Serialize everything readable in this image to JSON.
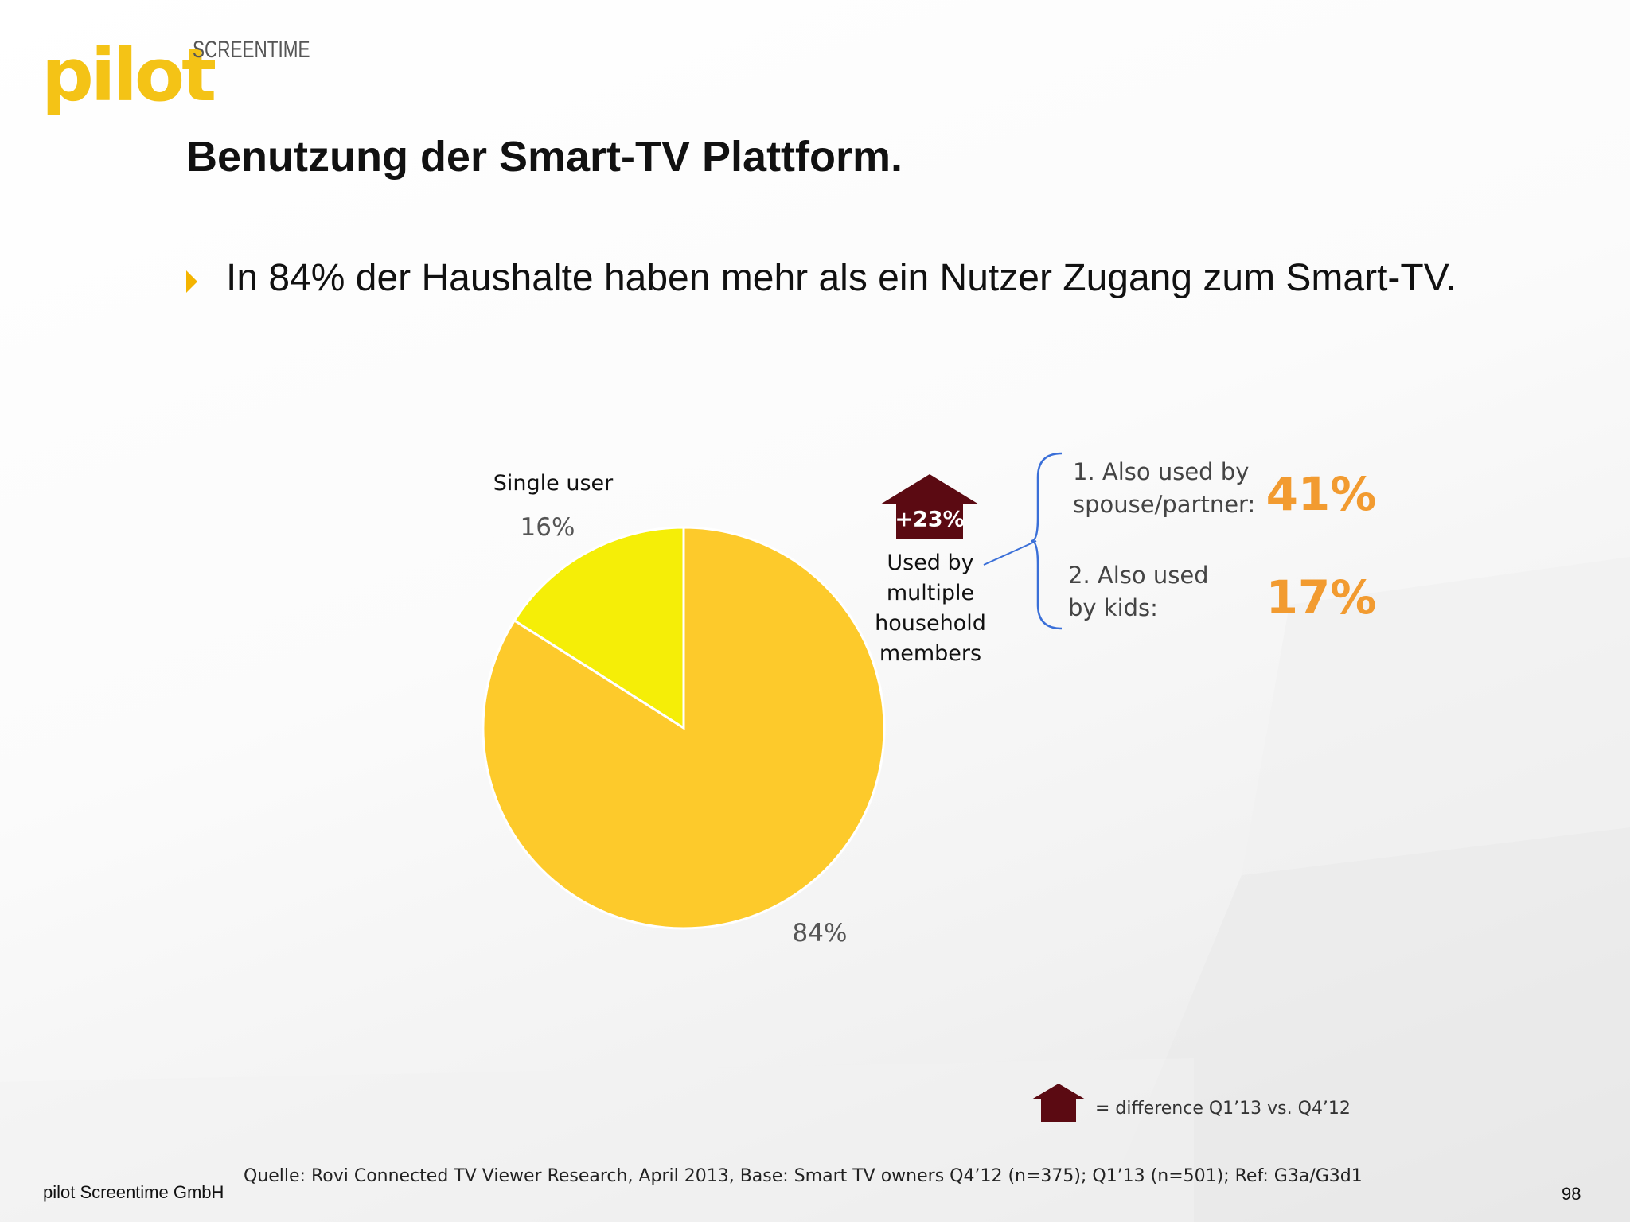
{
  "logo": {
    "wordmark": "pilot",
    "subline": "SCREENTIME"
  },
  "title": "Benutzung der Smart-TV Plattform.",
  "bullet": "In 84% der Haushalte haben mehr als ein Nutzer Zugang zum Smart-TV.",
  "chart_data": {
    "type": "pie",
    "categories": [
      "Single user",
      "Used by multiple household members"
    ],
    "values": [
      16,
      84
    ],
    "value_labels": [
      "16%",
      "84%"
    ],
    "colors": [
      "#f5ee07",
      "#fdca2b"
    ],
    "category_labels": {
      "single": "Single user",
      "multi": [
        "Used by",
        "multiple",
        "household",
        "members"
      ]
    }
  },
  "change_badge": {
    "label": "+23%",
    "color": "#5b0a12"
  },
  "breakdown": [
    {
      "lines": [
        "1. Also used by",
        "spouse/partner:"
      ],
      "value": "41%"
    },
    {
      "lines": [
        "2. Also used",
        "by kids:"
      ],
      "value": "17%"
    }
  ],
  "accent_color": "#f29b30",
  "legend": {
    "text": "= difference Q1’13 vs. Q4’12"
  },
  "footer": {
    "company": "pilot Screentime GmbH",
    "source": "Quelle: Rovi Connected TV Viewer Research, April 2013, Base: Smart TV owners Q4’12 (n=375); Q1’13 (n=501); Ref: G3a/G3d1",
    "page": "98"
  }
}
